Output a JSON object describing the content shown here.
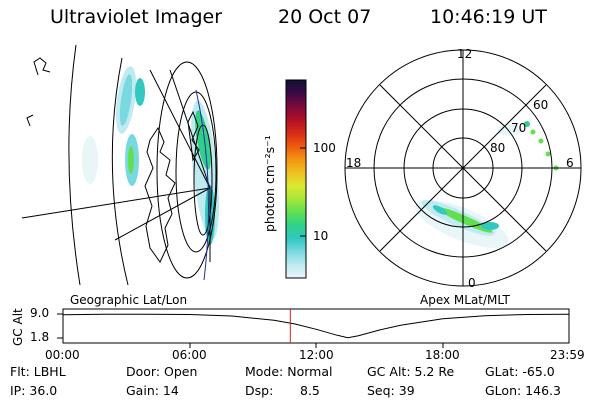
{
  "header": {
    "instrument": "Ultraviolet Imager",
    "date": "20 Oct 07",
    "time": "10:46:19 UT"
  },
  "colorbar": {
    "label": "photon cm⁻²s⁻¹",
    "ticks": [
      "100",
      "10"
    ],
    "colors": [
      "#111133",
      "#3a0a46",
      "#7a0a3a",
      "#b0102a",
      "#d82a1a",
      "#ec5a10",
      "#f39410",
      "#f0c020",
      "#dde830",
      "#a8e83a",
      "#60e050",
      "#30d08a",
      "#30c8c0",
      "#7ad8e0",
      "#bfeaf0",
      "#e8f6f8"
    ]
  },
  "panels": {
    "left_caption": "Geographic Lat/Lon",
    "right_caption": "Apex MLat/MLT"
  },
  "polar": {
    "mlt_labels": [
      "12",
      "18",
      "6",
      "0"
    ],
    "mlat_labels": [
      "60",
      "70",
      "80"
    ]
  },
  "altitude_plot": {
    "ylabel": "GC Alt",
    "yticks": [
      "9.0",
      "1.8"
    ],
    "xticks": [
      "00:00",
      "06:00",
      "12:00",
      "18:00",
      "23:59"
    ],
    "marker_color": "#d02020",
    "chart_data": {
      "type": "line",
      "title": "",
      "xlabel": "",
      "ylabel": "GC Alt",
      "ylim": [
        1.8,
        9.0
      ],
      "xlim_hours": [
        0,
        23.98
      ],
      "current_time_hours": 10.77,
      "series": [
        {
          "x": [
            0,
            2,
            4,
            6,
            8,
            10,
            11,
            12,
            13,
            13.5,
            14,
            15,
            16,
            18,
            20,
            22,
            23.98
          ],
          "values": [
            8.8,
            8.9,
            8.95,
            8.85,
            8.4,
            7.1,
            6.0,
            4.4,
            2.6,
            1.9,
            2.5,
            4.2,
            5.6,
            7.6,
            8.5,
            8.85,
            8.95
          ]
        }
      ]
    }
  },
  "footer": {
    "col1": [
      "Flt: LBHL",
      "IP: 36.0"
    ],
    "col2": [
      "Door: Open",
      "Gain: 14"
    ],
    "col3": [
      "Mode: Normal",
      "Dsp:",
      "8.5"
    ],
    "col4": [
      "GC Alt: 5.2 Re",
      "Seq: 39"
    ],
    "col5": [
      "GLat: -65.0",
      "GLon: 146.3"
    ]
  }
}
